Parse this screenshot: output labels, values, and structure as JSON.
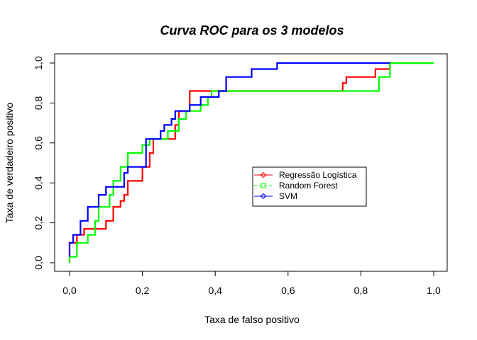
{
  "chart_data": {
    "type": "line",
    "title": "Curva ROC para os 3 modelos",
    "xlabel": "Taxa de falso positivo",
    "ylabel": "Taxa de verdadeiro positivo",
    "xlim": [
      0,
      1
    ],
    "ylim": [
      0,
      1
    ],
    "xticks": [
      "0,0",
      "0,2",
      "0,4",
      "0,6",
      "0,8",
      "1,0"
    ],
    "yticks": [
      "0,0",
      "0,2",
      "0,4",
      "0,6",
      "0,8",
      "1,0"
    ],
    "tick_values": [
      0,
      0.2,
      0.4,
      0.6,
      0.8,
      1.0
    ],
    "grid": false,
    "legend_position": "center-right",
    "series": [
      {
        "name": "Regressão Logística",
        "color": "#ff0000",
        "marker": "diamond",
        "line_style": "solid",
        "x": [
          0.0,
          0.0,
          0.02,
          0.02,
          0.04,
          0.04,
          0.05,
          0.05,
          0.1,
          0.1,
          0.12,
          0.12,
          0.14,
          0.14,
          0.15,
          0.15,
          0.16,
          0.16,
          0.2,
          0.2,
          0.22,
          0.22,
          0.23,
          0.23,
          0.29,
          0.29,
          0.3,
          0.3,
          0.33,
          0.33,
          0.75,
          0.75,
          0.76,
          0.76,
          0.8,
          0.8,
          0.84,
          0.84,
          0.88,
          0.88,
          1.0
        ],
        "y": [
          0.0,
          0.1,
          0.1,
          0.14,
          0.14,
          0.17,
          0.17,
          0.17,
          0.17,
          0.21,
          0.21,
          0.28,
          0.28,
          0.31,
          0.31,
          0.34,
          0.34,
          0.41,
          0.41,
          0.48,
          0.48,
          0.55,
          0.55,
          0.62,
          0.62,
          0.69,
          0.69,
          0.76,
          0.76,
          0.86,
          0.86,
          0.9,
          0.9,
          0.93,
          0.93,
          0.93,
          0.93,
          0.97,
          0.97,
          1.0,
          1.0
        ]
      },
      {
        "name": "Random Forest",
        "color": "#00ff00",
        "marker": "square",
        "line_style": "dashed",
        "x": [
          0.0,
          0.0,
          0.02,
          0.02,
          0.05,
          0.05,
          0.07,
          0.07,
          0.08,
          0.08,
          0.11,
          0.11,
          0.12,
          0.12,
          0.14,
          0.14,
          0.16,
          0.16,
          0.2,
          0.2,
          0.22,
          0.22,
          0.27,
          0.27,
          0.3,
          0.3,
          0.32,
          0.32,
          0.36,
          0.36,
          0.38,
          0.38,
          0.39,
          0.39,
          0.85,
          0.85,
          0.88,
          0.88,
          1.0
        ],
        "y": [
          0.0,
          0.03,
          0.03,
          0.1,
          0.1,
          0.14,
          0.14,
          0.21,
          0.21,
          0.28,
          0.28,
          0.34,
          0.34,
          0.41,
          0.41,
          0.48,
          0.48,
          0.55,
          0.55,
          0.59,
          0.59,
          0.62,
          0.62,
          0.66,
          0.66,
          0.72,
          0.72,
          0.76,
          0.76,
          0.79,
          0.79,
          0.83,
          0.83,
          0.86,
          0.86,
          0.93,
          0.93,
          1.0,
          1.0
        ]
      },
      {
        "name": "SVM",
        "color": "#0000ff",
        "marker": "diamond",
        "line_style": "solid",
        "x": [
          0.0,
          0.0,
          0.01,
          0.01,
          0.03,
          0.03,
          0.05,
          0.05,
          0.08,
          0.08,
          0.1,
          0.1,
          0.15,
          0.15,
          0.16,
          0.16,
          0.21,
          0.21,
          0.25,
          0.25,
          0.26,
          0.26,
          0.28,
          0.28,
          0.29,
          0.29,
          0.3,
          0.3,
          0.33,
          0.33,
          0.36,
          0.36,
          0.41,
          0.41,
          0.43,
          0.43,
          0.49,
          0.49,
          0.5,
          0.5,
          0.51,
          0.51,
          0.57,
          0.57,
          0.88
        ],
        "y": [
          0.03,
          0.1,
          0.1,
          0.14,
          0.14,
          0.21,
          0.21,
          0.28,
          0.28,
          0.34,
          0.34,
          0.38,
          0.38,
          0.45,
          0.45,
          0.48,
          0.48,
          0.62,
          0.62,
          0.66,
          0.66,
          0.69,
          0.69,
          0.72,
          0.72,
          0.76,
          0.76,
          0.76,
          0.76,
          0.79,
          0.79,
          0.83,
          0.83,
          0.86,
          0.86,
          0.93,
          0.93,
          0.93,
          0.93,
          0.97,
          0.97,
          0.97,
          0.97,
          1.0,
          1.0
        ]
      }
    ]
  }
}
